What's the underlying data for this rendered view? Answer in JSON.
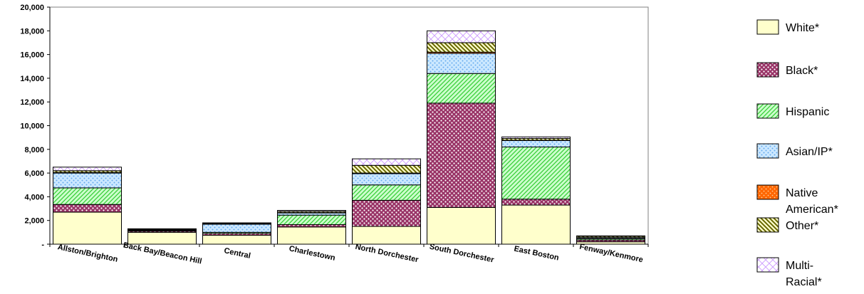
{
  "chart_data": {
    "type": "bar",
    "stacked": true,
    "title": "",
    "xlabel": "",
    "ylabel": "",
    "ylim": [
      0,
      20000
    ],
    "yticks": [
      0,
      2000,
      4000,
      6000,
      8000,
      10000,
      12000,
      14000,
      16000,
      18000,
      20000
    ],
    "ytick_labels": [
      "-",
      "2,000",
      "4,000",
      "6,000",
      "8,000",
      "10,000",
      "12,000",
      "14,000",
      "16,000",
      "18,000",
      "20,000"
    ],
    "grid": false,
    "legend_position": "right",
    "categories": [
      "Allston/Brighton",
      "Back Bay/Beacon Hill",
      "Central",
      "Charlestown",
      "North Dorchester",
      "South Dorchester",
      "East Boston",
      "Fenway/Kenmore"
    ],
    "series": [
      {
        "name": "White*",
        "legend_lines": [
          "White*"
        ],
        "color": "#ffffcc",
        "pattern": "solid",
        "values": [
          2700,
          1000,
          750,
          1450,
          1500,
          3100,
          3300,
          200
        ]
      },
      {
        "name": "Black*",
        "legend_lines": [
          "Black*"
        ],
        "color": "#993366",
        "pattern": "dots",
        "values": [
          650,
          100,
          150,
          200,
          2200,
          8800,
          500,
          150
        ]
      },
      {
        "name": "Hispanic",
        "legend_lines": [
          "Hispanic"
        ],
        "color": "#ccffcc",
        "pattern": "diagonal",
        "values": [
          1400,
          50,
          100,
          800,
          1300,
          2500,
          4400,
          100
        ]
      },
      {
        "name": "Asian/IP*",
        "legend_lines": [
          "Asian/IP*"
        ],
        "color": "#cce8ff",
        "pattern": "dots-blue",
        "values": [
          1250,
          50,
          700,
          200,
          950,
          1700,
          550,
          100
        ]
      },
      {
        "name": "Native American*",
        "legend_lines": [
          "Native",
          "American*"
        ],
        "color": "#ff6600",
        "pattern": "dots-orange",
        "values": [
          50,
          10,
          10,
          10,
          50,
          100,
          20,
          10
        ]
      },
      {
        "name": "Other*",
        "legend_lines": [
          "Other*"
        ],
        "color": "#999933",
        "pattern": "diagonal-dark",
        "values": [
          150,
          50,
          50,
          100,
          650,
          800,
          150,
          100
        ]
      },
      {
        "name": "Multi-Racial*",
        "legend_lines": [
          "Multi-",
          "Racial*"
        ],
        "color": "#ffffff",
        "pattern": "multi",
        "values": [
          300,
          40,
          40,
          90,
          550,
          1000,
          130,
          40
        ]
      }
    ]
  }
}
